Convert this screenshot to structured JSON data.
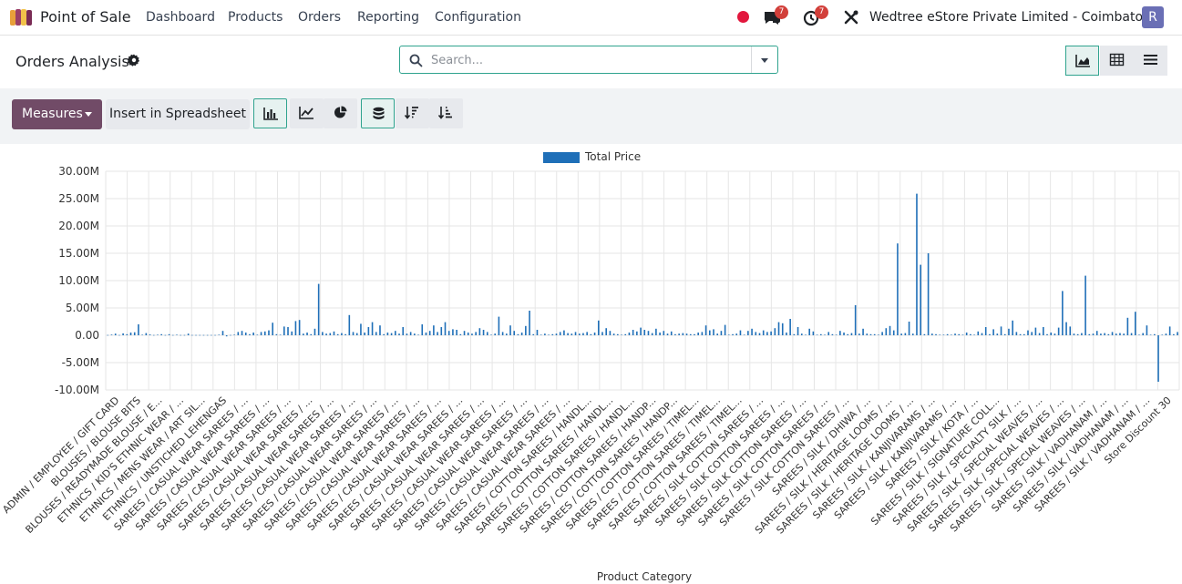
{
  "navbar": {
    "app_name": "Point of Sale",
    "menu": [
      "Dashboard",
      "Products",
      "Orders",
      "Reporting",
      "Configuration"
    ],
    "messages_badge": "7",
    "activities_badge": "7",
    "company": "Wedtree eStore Private Limited - Coimbatore",
    "avatar_letter": "R"
  },
  "control_panel": {
    "title": "Orders Analysis",
    "search_placeholder": "Search..."
  },
  "toolbar": {
    "measures_label": "Measures",
    "spreadsheet_label": "Insert in Spreadsheet"
  },
  "colors": {
    "accent": "#2fa38e",
    "brand": "#714b67",
    "bar": "#1f6fb8"
  },
  "chart_data": {
    "type": "bar",
    "legend": "Total Price",
    "legend_position": "top-center",
    "xlabel": "Product Category",
    "ylabel": "",
    "ylim": [
      -10000000,
      30000000
    ],
    "yticks": [
      "-10.00M",
      "-5.00M",
      "0.00",
      "5.00M",
      "10.00M",
      "15.00M",
      "20.00M",
      "25.00M",
      "30.00M"
    ],
    "grid": true,
    "tick_labels": [
      "ADMIN / EMPLOYEE / GIFT CARD",
      "BLOUSES / BLOUSE BITS",
      "BLOUSES / READYMADE BLOUSE / E...",
      "ETHNICS / KID'S ETHNIC WEAR / ...",
      "ETHNICS / MENS WEAR / ART SIL...",
      "ETHNICS / UNSTICHED LEHENGAS",
      "SAREES / CASUAL WEAR SAREES / ...",
      "SAREES / CASUAL WEAR SAREES / ...",
      "SAREES / CASUAL WEAR SAREES / ...",
      "SAREES / CASUAL WEAR SAREES / ...",
      "SAREES / CASUAL WEAR SAREES / ...",
      "SAREES / CASUAL WEAR SAREES / ...",
      "SAREES / CASUAL WEAR SAREES / ...",
      "SAREES / CASUAL WEAR SAREES / ...",
      "SAREES / CASUAL WEAR SAREES / ...",
      "SAREES / CASUAL WEAR SAREES / ...",
      "SAREES / CASUAL WEAR SAREES / ...",
      "SAREES / CASUAL WEAR SAREES / ...",
      "SAREES / CASUAL WEAR SAREES / ...",
      "SAREES / CASUAL WEAR SAREES / ...",
      "SAREES / CASUAL WEAR SAREES / ...",
      "SAREES / CASUAL WEAR SAREES / ...",
      "SAREES / COTTON SAREES / HANDL...",
      "SAREES / COTTON SAREES / HANDL...",
      "SAREES / COTTON SAREES / HANDL...",
      "SAREES / COTTON SAREES / HANDP...",
      "SAREES / COTTON SAREES / HANDP...",
      "SAREES / COTTON SAREES / TIMEL...",
      "SAREES / COTTON SAREES / TIMEL...",
      "SAREES / COTTON SAREES / TIMEL...",
      "SAREES / SILK COTTON SAREES / ...",
      "SAREES / SILK COTTON SAREES / ...",
      "SAREES / SILK COTTON SAREES / ...",
      "SAREES / SILK COTTON SAREES / ...",
      "SAREES / SILK COTTON SAREES / ...",
      "SAREES / SILK / DHIWA / ...",
      "SAREES / SILK / HERITAGE LOOMS / ...",
      "SAREES / SILK / HERITAGE LOOMS / ...",
      "SAREES / SILK / KANJIVARAMS / ...",
      "SAREES / SILK / KANJIVARAMS / ...",
      "SAREES / SILK / KOTA / ...",
      "SAREES / SILK / SIGNATURE COLL...",
      "SAREES / SILK / SPECIALTY SILK / ...",
      "SAREES / SILK / SPECIAL WEAVES / ...",
      "SAREES / SILK / SPECIAL WEAVES / ...",
      "SAREES / SILK / SPECIAL WEAVES / ...",
      "SAREES / SILK / VADHANAM / ...",
      "SAREES / SILK / VADHANAM / ...",
      "SAREES / SILK / VADHANAM / ...",
      "Store Discount 30"
    ],
    "values": [
      0.05,
      0.12,
      0.3,
      0.05,
      0.35,
      0.2,
      0.5,
      0.55,
      2.0,
      0.1,
      0.4,
      0.15,
      0.05,
      0.1,
      0.2,
      0.05,
      0.2,
      0.05,
      0.1,
      0.05,
      0.05,
      0.3,
      0.05,
      0.05,
      0.05,
      0.05,
      0.05,
      0.05,
      0.05,
      0.1,
      0.8,
      -0.2,
      0.05,
      0.1,
      0.6,
      0.8,
      0.5,
      0.2,
      0.5,
      0.1,
      0.6,
      0.7,
      0.9,
      2.3,
      0.2,
      0.1,
      1.6,
      1.5,
      0.7,
      2.6,
      2.8,
      0.3,
      0.5,
      0.2,
      1.2,
      9.4,
      0.6,
      0.3,
      0.4,
      0.7,
      0.2,
      0.4,
      0.2,
      3.7,
      0.6,
      0.4,
      2.1,
      0.5,
      1.5,
      2.4,
      0.6,
      1.8,
      0.2,
      0.5,
      0.4,
      0.8,
      0.3,
      1.5,
      0.3,
      0.6,
      0.3,
      0.1,
      2.0,
      0.5,
      0.8,
      1.8,
      0.6,
      1.5,
      2.4,
      0.8,
      1.1,
      1.0,
      0.2,
      0.8,
      0.5,
      0.3,
      0.6,
      1.3,
      1.0,
      0.6,
      0.1,
      0.3,
      3.4,
      0.6,
      0.3,
      1.8,
      0.8,
      0.2,
      0.5,
      1.7,
      4.5,
      0.2,
      1.0,
      0.1,
      0.3,
      0.1,
      0.2,
      0.3,
      0.6,
      0.9,
      0.4,
      0.3,
      0.6,
      0.3,
      0.4,
      0.6,
      0.2,
      0.5,
      2.7,
      0.6,
      1.3,
      0.8,
      0.3,
      0.2,
      0.1,
      0.2,
      0.5,
      1.0,
      0.7,
      1.4,
      1.0,
      0.8,
      0.4,
      1.2,
      0.5,
      0.8,
      0.3,
      0.7,
      0.2,
      0.3,
      0.4,
      0.3,
      0.2,
      0.2,
      0.5,
      0.6,
      1.8,
      0.9,
      1.1,
      0.3,
      0.8,
      1.9,
      0.1,
      0.2,
      0.3,
      0.9,
      0.1,
      0.8,
      1.2,
      0.6,
      0.4,
      0.9,
      0.6,
      0.7,
      1.3,
      2.4,
      2.2,
      0.5,
      3.0,
      0.2,
      1.5,
      0.3,
      0.1,
      1.2,
      0.7,
      0.1,
      0.2,
      0.1,
      0.6,
      0.2,
      0.1,
      0.8,
      0.5,
      0.2,
      0.4,
      5.5,
      0.3,
      1.2,
      0.3,
      0.2,
      0.2,
      0.1,
      0.6,
      1.3,
      1.7,
      0.9,
      16.8,
      0.3,
      0.4,
      2.5,
      0.3,
      25.9,
      12.9,
      0.2,
      15.0,
      0.3,
      0.2,
      0.1,
      0.1,
      0.2,
      0.1,
      0.3,
      0.2,
      0.1,
      0.5,
      0.2,
      0.1,
      0.7,
      0.4,
      1.5,
      0.2,
      1.1,
      0.3,
      1.6,
      0.2,
      1.2,
      2.7,
      0.6,
      0.2,
      0.2,
      0.9,
      0.6,
      1.4,
      0.4,
      1.5,
      0.2,
      0.5,
      0.3,
      1.4,
      8.1,
      2.4,
      1.6,
      0.3,
      0.2,
      0.4,
      10.9,
      0.2,
      0.3,
      0.8,
      0.3,
      0.4,
      0.2,
      0.6,
      0.3,
      0.4,
      0.3,
      3.2,
      0.4,
      4.3,
      0.1,
      0.4,
      1.8,
      0.1,
      0.2,
      -8.5,
      0.1,
      0.3,
      1.6,
      0.2,
      0.6
    ]
  }
}
